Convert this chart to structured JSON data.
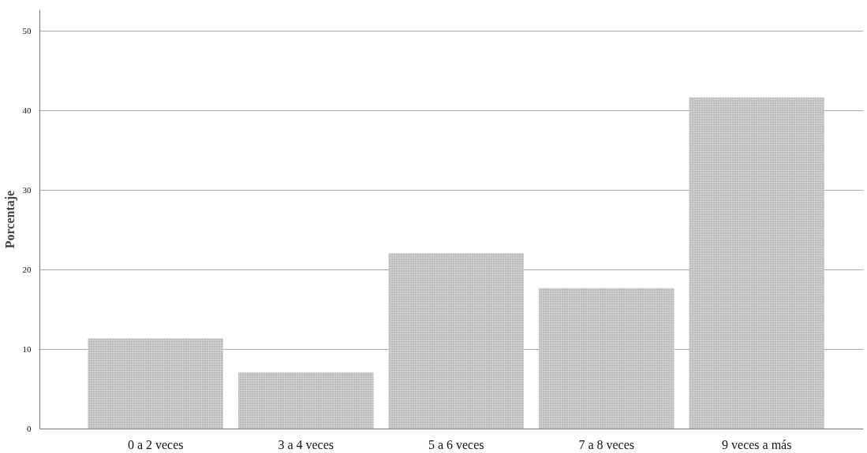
{
  "chart_data": {
    "type": "bar",
    "ylabel": "Porcentaje",
    "categories": [
      "0 a 2 veces",
      "3 a 4 veces",
      "5 a 6 veces",
      "7 a 8 veces",
      "9 veces a más"
    ],
    "values": [
      11.4,
      7.1,
      22.1,
      17.7,
      41.7
    ],
    "color": "#cfcfcf",
    "ylim": [
      0,
      52.7
    ],
    "yticks": [
      0,
      10,
      20,
      30,
      40,
      50
    ],
    "grid": "y"
  }
}
